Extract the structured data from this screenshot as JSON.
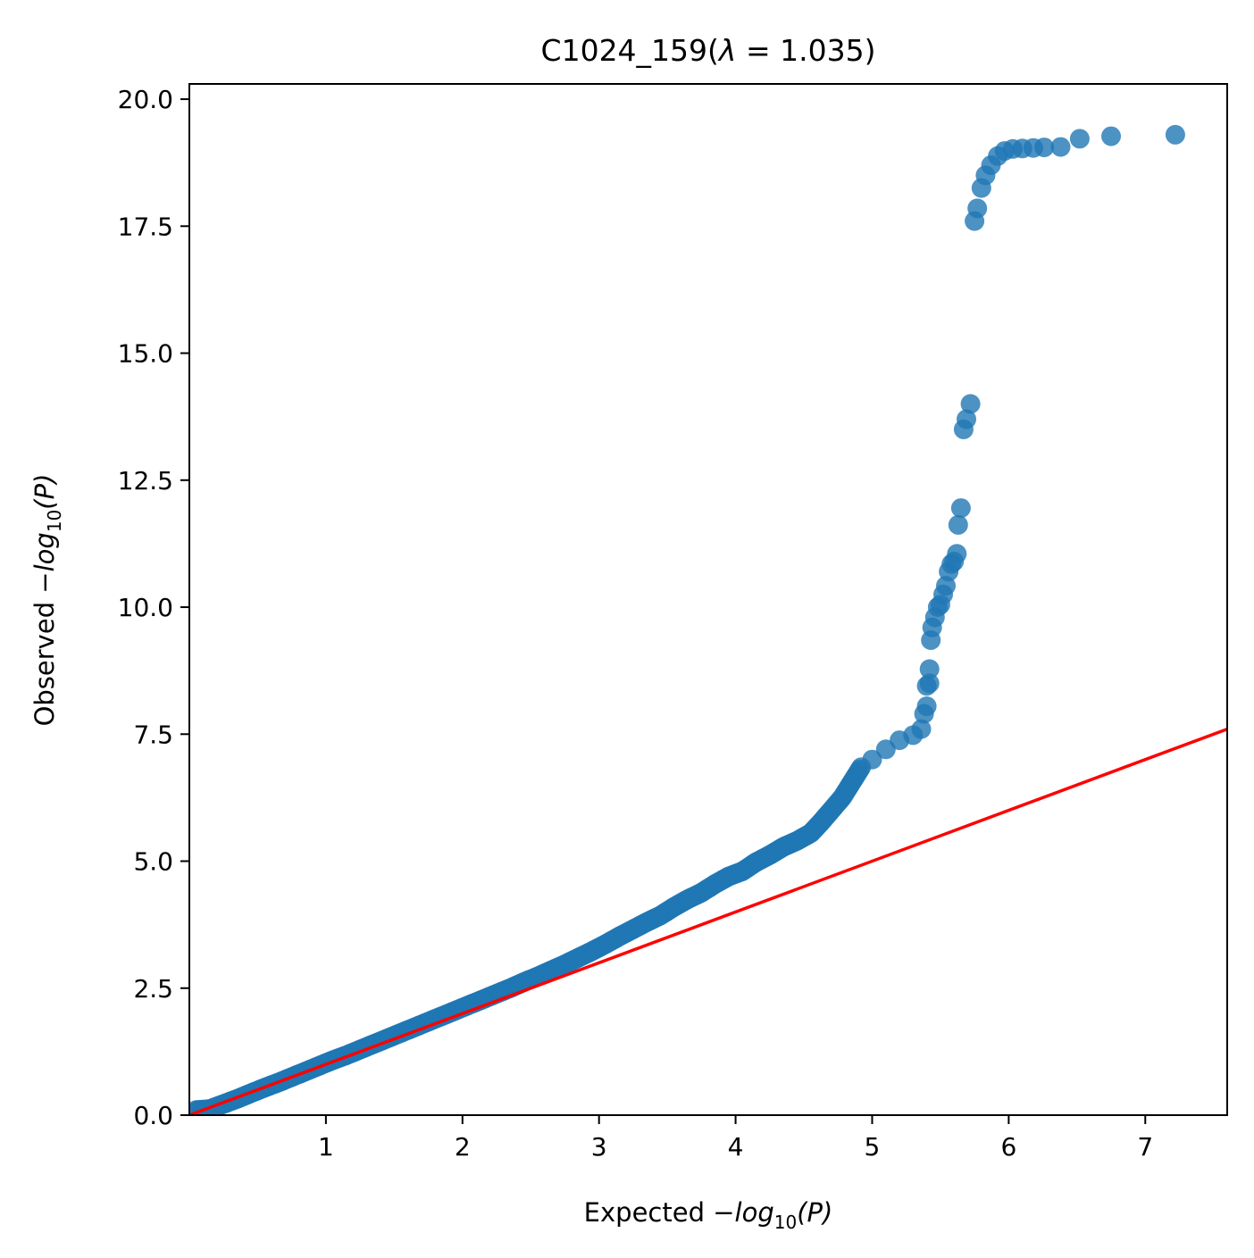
{
  "title": {
    "prefix": "C1024_159(",
    "lambda_symbol": "λ",
    "equals": " = ",
    "lambda_value": "1.035",
    "suffix": ")"
  },
  "xaxis": {
    "label_prefix": "Expected ",
    "label_minus": "−",
    "label_log": "log",
    "label_sub": "10",
    "label_arg": "(P)"
  },
  "yaxis": {
    "label_prefix": "Observed ",
    "label_minus": "−",
    "label_log": "log",
    "label_sub": "10",
    "label_arg": "(P)"
  },
  "colors": {
    "points": "#1f77b4",
    "reference_line": "#ff0000"
  },
  "chart_data": {
    "type": "scatter",
    "xlim": [
      0.0,
      7.6
    ],
    "ylim": [
      0.0,
      20.3
    ],
    "x_ticks": [
      {
        "value": 1,
        "label": "1"
      },
      {
        "value": 2,
        "label": "2"
      },
      {
        "value": 3,
        "label": "3"
      },
      {
        "value": 4,
        "label": "4"
      },
      {
        "value": 5,
        "label": "5"
      },
      {
        "value": 6,
        "label": "6"
      },
      {
        "value": 7,
        "label": "7"
      }
    ],
    "y_ticks": [
      {
        "value": 0.0,
        "label": "0.0"
      },
      {
        "value": 2.5,
        "label": "2.5"
      },
      {
        "value": 5.0,
        "label": "5.0"
      },
      {
        "value": 7.5,
        "label": "7.5"
      },
      {
        "value": 10.0,
        "label": "10.0"
      },
      {
        "value": 12.5,
        "label": "12.5"
      },
      {
        "value": 15.0,
        "label": "15.0"
      },
      {
        "value": 17.5,
        "label": "17.5"
      },
      {
        "value": 20.0,
        "label": "20.0"
      }
    ],
    "reference_line": {
      "x": [
        0.0,
        7.6
      ],
      "y": [
        0.0,
        7.6
      ]
    },
    "points": [
      [
        0.05,
        0.1
      ],
      [
        0.15,
        0.12
      ],
      [
        0.25,
        0.22
      ],
      [
        0.35,
        0.32
      ],
      [
        0.45,
        0.43
      ],
      [
        0.55,
        0.54
      ],
      [
        0.65,
        0.64
      ],
      [
        0.75,
        0.75
      ],
      [
        0.85,
        0.86
      ],
      [
        0.95,
        0.97
      ],
      [
        1.05,
        1.08
      ],
      [
        1.15,
        1.18
      ],
      [
        1.25,
        1.29
      ],
      [
        1.35,
        1.4
      ],
      [
        1.45,
        1.51
      ],
      [
        1.55,
        1.62
      ],
      [
        1.65,
        1.73
      ],
      [
        1.75,
        1.84
      ],
      [
        1.85,
        1.95
      ],
      [
        1.95,
        2.06
      ],
      [
        2.05,
        2.17
      ],
      [
        2.15,
        2.28
      ],
      [
        2.25,
        2.39
      ],
      [
        2.35,
        2.5
      ],
      [
        2.45,
        2.62
      ],
      [
        2.55,
        2.73
      ],
      [
        2.65,
        2.85
      ],
      [
        2.75,
        2.97
      ],
      [
        2.85,
        3.1
      ],
      [
        2.95,
        3.23
      ],
      [
        3.05,
        3.37
      ],
      [
        3.15,
        3.52
      ],
      [
        3.25,
        3.66
      ],
      [
        3.35,
        3.8
      ],
      [
        3.45,
        3.93
      ],
      [
        3.55,
        4.1
      ],
      [
        3.65,
        4.25
      ],
      [
        3.75,
        4.38
      ],
      [
        3.85,
        4.55
      ],
      [
        3.95,
        4.7
      ],
      [
        4.05,
        4.8
      ],
      [
        4.15,
        4.98
      ],
      [
        4.25,
        5.12
      ],
      [
        4.35,
        5.28
      ],
      [
        4.45,
        5.4
      ],
      [
        4.55,
        5.55
      ],
      [
        4.62,
        5.75
      ],
      [
        4.7,
        6.0
      ],
      [
        4.78,
        6.25
      ],
      [
        4.85,
        6.55
      ],
      [
        4.92,
        6.85
      ],
      [
        5.0,
        7.0
      ],
      [
        5.1,
        7.2
      ],
      [
        5.2,
        7.38
      ],
      [
        5.3,
        7.48
      ],
      [
        5.36,
        7.6
      ],
      [
        5.38,
        7.9
      ],
      [
        5.4,
        8.05
      ],
      [
        5.4,
        8.45
      ],
      [
        5.42,
        8.5
      ],
      [
        5.42,
        8.78
      ],
      [
        5.43,
        9.35
      ],
      [
        5.44,
        9.6
      ],
      [
        5.46,
        9.8
      ],
      [
        5.48,
        10.0
      ],
      [
        5.5,
        10.05
      ],
      [
        5.52,
        10.25
      ],
      [
        5.54,
        10.42
      ],
      [
        5.56,
        10.7
      ],
      [
        5.58,
        10.85
      ],
      [
        5.6,
        10.9
      ],
      [
        5.62,
        11.05
      ],
      [
        5.63,
        11.62
      ],
      [
        5.65,
        11.95
      ],
      [
        5.67,
        13.5
      ],
      [
        5.69,
        13.7
      ],
      [
        5.72,
        14.0
      ],
      [
        5.75,
        17.6
      ],
      [
        5.77,
        17.85
      ],
      [
        5.8,
        18.25
      ],
      [
        5.83,
        18.5
      ],
      [
        5.87,
        18.7
      ],
      [
        5.92,
        18.88
      ],
      [
        5.97,
        18.98
      ],
      [
        6.03,
        19.02
      ],
      [
        6.1,
        19.03
      ],
      [
        6.18,
        19.04
      ],
      [
        6.26,
        19.05
      ],
      [
        6.38,
        19.06
      ],
      [
        6.52,
        19.22
      ],
      [
        6.75,
        19.27
      ],
      [
        7.22,
        19.3
      ]
    ]
  }
}
